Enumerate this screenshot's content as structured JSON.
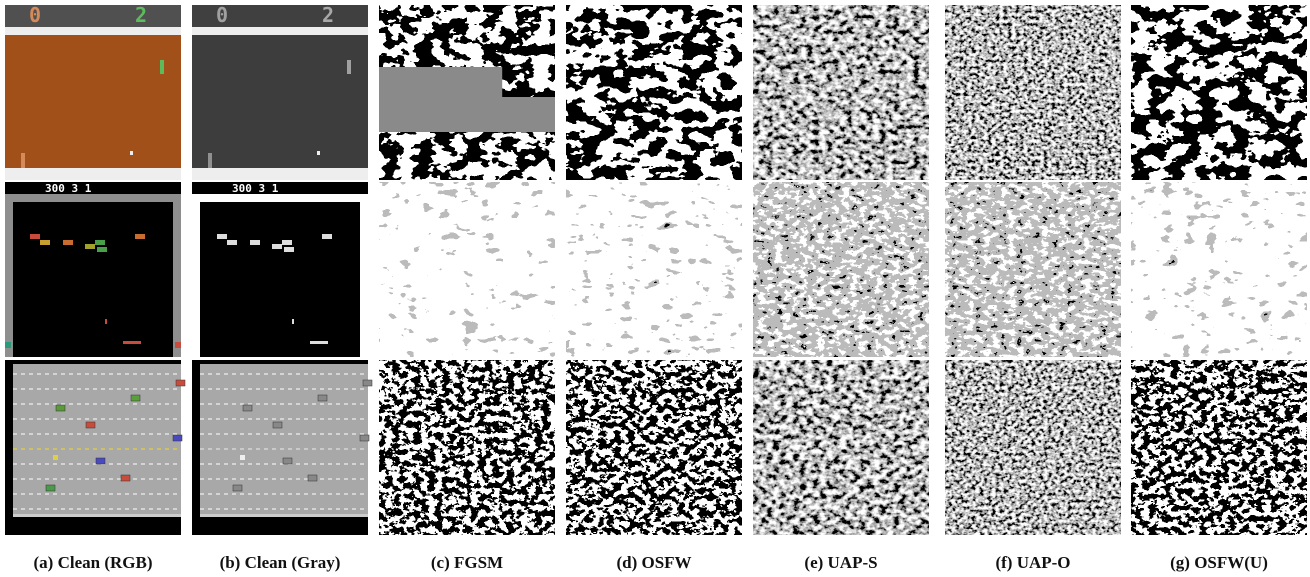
{
  "captions": [
    "(a) Clean (RGB)",
    "(b) Clean (Gray)",
    "(c) FGSM",
    "(d) OSFW",
    "(e) UAP-S",
    "(f) UAP-O",
    "(g) OSFW(U)"
  ],
  "pong_scores": [
    "0",
    "2"
  ],
  "breakout_score": "300   3   1"
}
